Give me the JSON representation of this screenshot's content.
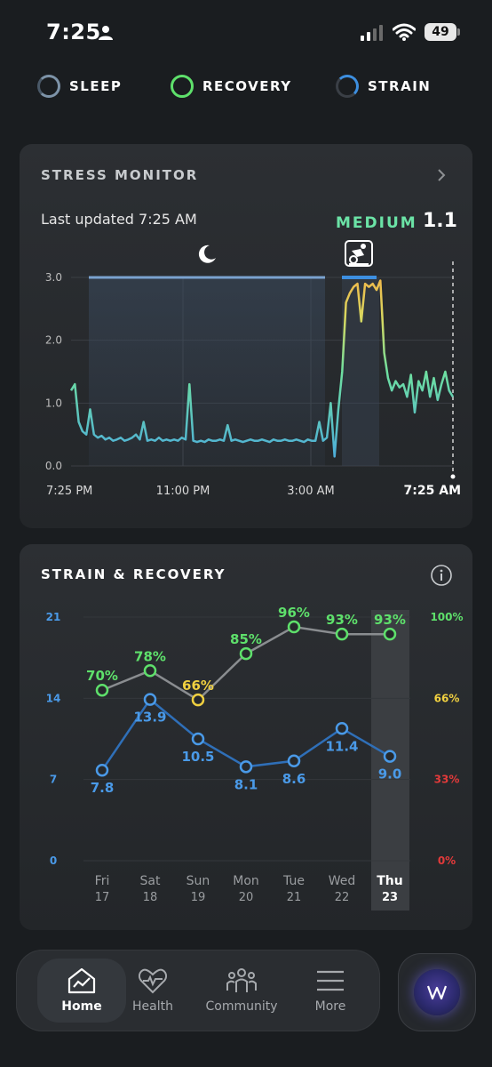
{
  "status_bar": {
    "time": "7:25",
    "battery": "49"
  },
  "top_tabs": [
    {
      "label": "SLEEP",
      "ring_color": "#7d93a8"
    },
    {
      "label": "RECOVERY",
      "ring_color": "#5ee06b"
    },
    {
      "label": "STRAIN",
      "ring_color": "#3d8fe0"
    }
  ],
  "stress_monitor": {
    "title": "STRESS MONITOR",
    "last_updated": "Last updated 7:25 AM",
    "level": "MEDIUM",
    "value": "1.1",
    "chart_data": {
      "type": "line",
      "y_ticks": [
        "0.0",
        "1.0",
        "2.0",
        "3.0"
      ],
      "ylim": [
        0,
        3
      ],
      "x_ticks": [
        "7:25 PM",
        "11:00 PM",
        "3:00 AM",
        "7:25 AM"
      ],
      "sleep_icon": "moon-icon",
      "activity_icon": "exercise-bike-icon",
      "values": [
        1.2,
        1.3,
        0.7,
        0.55,
        0.5,
        0.9,
        0.5,
        0.45,
        0.48,
        0.42,
        0.45,
        0.4,
        0.42,
        0.45,
        0.4,
        0.42,
        0.45,
        0.5,
        0.42,
        0.7,
        0.4,
        0.42,
        0.4,
        0.45,
        0.4,
        0.42,
        0.4,
        0.42,
        0.4,
        0.45,
        0.42,
        1.3,
        0.4,
        0.38,
        0.4,
        0.38,
        0.42,
        0.4,
        0.4,
        0.42,
        0.4,
        0.65,
        0.4,
        0.42,
        0.4,
        0.38,
        0.4,
        0.42,
        0.4,
        0.4,
        0.42,
        0.4,
        0.38,
        0.42,
        0.4,
        0.4,
        0.42,
        0.4,
        0.4,
        0.42,
        0.4,
        0.38,
        0.42,
        0.4,
        0.4,
        0.7,
        0.4,
        0.45,
        1.0,
        0.15,
        0.9,
        1.5,
        2.6,
        2.75,
        2.85,
        2.9,
        2.3,
        2.9,
        2.85,
        2.9,
        2.8,
        2.95,
        1.8,
        1.4,
        1.2,
        1.35,
        1.25,
        1.3,
        1.1,
        1.45,
        0.85,
        1.35,
        1.2,
        1.5,
        1.1,
        1.4,
        1.05,
        1.3,
        1.5,
        1.2,
        1.1
      ]
    }
  },
  "strain_recovery": {
    "title": "STRAIN & RECOVERY",
    "left_axis": [
      "21",
      "14",
      "7",
      "0"
    ],
    "right_axis": [
      "100%",
      "66%",
      "33%",
      "0%"
    ],
    "right_axis_colors": [
      "#5ee06b",
      "#f0d040",
      "#e23a3a",
      "#e23a3a"
    ],
    "chart_data": {
      "type": "line",
      "categories": [
        "Fri 17",
        "Sat 18",
        "Sun 19",
        "Mon 20",
        "Tue 21",
        "Wed 22",
        "Thu 23"
      ],
      "days": [
        {
          "name": "Fri",
          "date": "17"
        },
        {
          "name": "Sat",
          "date": "18"
        },
        {
          "name": "Sun",
          "date": "19"
        },
        {
          "name": "Mon",
          "date": "20"
        },
        {
          "name": "Tue",
          "date": "21"
        },
        {
          "name": "Wed",
          "date": "22"
        },
        {
          "name": "Thu",
          "date": "23"
        }
      ],
      "recovery_labels": [
        "70%",
        "78%",
        "66%",
        "85%",
        "96%",
        "93%",
        "93%"
      ],
      "recovery_values": [
        70,
        78,
        66,
        85,
        96,
        93,
        93
      ],
      "recovery_colors": [
        "#5ee06b",
        "#5ee06b",
        "#f0d040",
        "#5ee06b",
        "#5ee06b",
        "#5ee06b",
        "#5ee06b"
      ],
      "strain_labels": [
        "7.8",
        "13.9",
        "10.5",
        "8.1",
        "8.6",
        "11.4",
        "9.0"
      ],
      "strain_values": [
        7.8,
        13.9,
        10.5,
        8.1,
        8.6,
        11.4,
        9.0
      ],
      "strain_range": [
        0,
        21
      ],
      "selected_day": "Thu 23"
    }
  },
  "bottom_nav": {
    "items": [
      {
        "label": "Home",
        "icon": "home-chart-icon"
      },
      {
        "label": "Health",
        "icon": "heart-pulse-icon"
      },
      {
        "label": "Community",
        "icon": "community-icon"
      },
      {
        "label": "More",
        "icon": "menu-icon"
      }
    ],
    "active": "Home",
    "whoop_icon": "whoop-logo-icon"
  }
}
